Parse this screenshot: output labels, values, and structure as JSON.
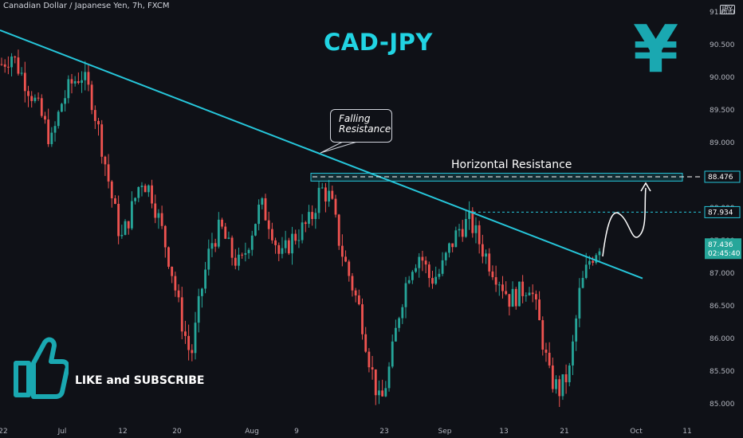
{
  "header": {
    "symbol_line": "Canadian Dollar / Japanese Yen, 7h, FXCM",
    "currency_tag": "JPY"
  },
  "overlay": {
    "title": "CAD-JPY",
    "yen_symbol": "¥",
    "falling_resistance_1": "Falling",
    "falling_resistance_2": "Resistance",
    "horizontal_resistance": "Horizontal Resistance",
    "like_subscribe": "LIKE and SUBSCRIBE"
  },
  "colors": {
    "background": "#0f1117",
    "bull": "#26a69a",
    "bear": "#ef5350",
    "trendline": "#26c6da",
    "accent": "#21d4e3",
    "price_tag": "#26a69a"
  },
  "chart_data": {
    "type": "candlestick",
    "title": "Canadian Dollar / Japanese Yen, 7h, FXCM",
    "ylim": [
      84.85,
      91.1
    ],
    "y_ticks": [
      "85.000",
      "85.500",
      "86.000",
      "86.500",
      "87.000",
      "87.500",
      "88.000",
      "88.500",
      "89.000",
      "89.500",
      "90.000",
      "90.500",
      "91.000"
    ],
    "x_ticks": [
      "22",
      "Jul",
      "12",
      "20",
      "Aug",
      "9",
      "23",
      "Sep",
      "13",
      "21",
      "Oct",
      "11"
    ],
    "price_labels": [
      {
        "value": 88.476,
        "text": "88.476",
        "style": "level"
      },
      {
        "value": 87.934,
        "text": "87.934",
        "style": "level"
      },
      {
        "value": 87.436,
        "text": "87.436",
        "sub": "02:45:40",
        "style": "last"
      }
    ],
    "horizontal_resistance": {
      "low": 88.41,
      "high": 88.53,
      "level": 88.476
    },
    "falling_resistance": {
      "from": {
        "x_index": 0,
        "value": 90.72
      },
      "to": {
        "x_index": 190,
        "value": 86.92
      }
    },
    "close_path": [
      90.2,
      90.35,
      90.05,
      89.75,
      89.4,
      89.0,
      89.6,
      89.9,
      90.05,
      89.7,
      89.0,
      88.2,
      87.5,
      87.95,
      88.45,
      88.25,
      87.7,
      87.1,
      86.3,
      85.7,
      86.7,
      87.45,
      87.7,
      87.3,
      87.1,
      87.6,
      88.05,
      87.75,
      87.2,
      87.5,
      87.65,
      87.8,
      88.3,
      88.15,
      87.4,
      86.9,
      86.4,
      85.6,
      84.95,
      85.6,
      86.5,
      87.1,
      87.3,
      86.9,
      87.0,
      87.4,
      87.7,
      87.8,
      87.45,
      87.15,
      86.9,
      86.6,
      86.7,
      86.85,
      86.2,
      85.4,
      85.2,
      85.5,
      86.7,
      87.2,
      87.45
    ],
    "ohlc_count": 180
  }
}
